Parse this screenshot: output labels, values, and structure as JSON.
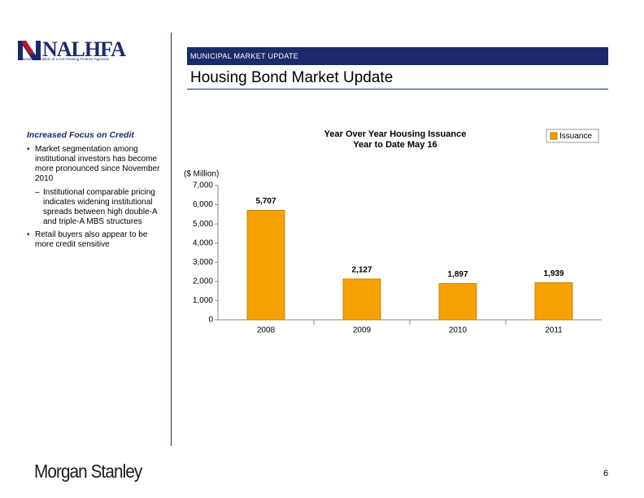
{
  "logo": {
    "name": "NALHFA",
    "subtitle": "National Association of Local Housing Finance Agencies"
  },
  "header": {
    "section": "MUNICIPAL MARKET UPDATE",
    "title": "Housing Bond Market Update"
  },
  "sidebar": {
    "heading": "Increased Focus on Credit",
    "bullets": [
      {
        "text": "Market segmentation among institutional investors has become more pronounced since November 2010",
        "subbullets": [
          "Institutional comparable pricing indicates widening institutional spreads between high double-A and triple-A MBS structures"
        ]
      },
      {
        "text": "Retail buyers also appear to be more credit sensitive"
      }
    ]
  },
  "chart_data": {
    "type": "bar",
    "title": "Year Over Year Housing Issuance",
    "subtitle": "Year to Date May 16",
    "y_label": "($ Million)",
    "categories": [
      "2008",
      "2009",
      "2010",
      "2011"
    ],
    "series": [
      {
        "name": "Issuance",
        "color": "#f5a200",
        "values": [
          5707,
          2127,
          1897,
          1939
        ],
        "value_labels": [
          "5,707",
          "2,127",
          "1,897",
          "1,939"
        ]
      }
    ],
    "ylim": [
      0,
      7000
    ],
    "yticks": [
      0,
      {
        "value": 1000,
        "label": "1,000"
      },
      {
        "value": 2000,
        "label": "2,000"
      },
      {
        "value": 3000,
        "label": "3,000"
      },
      {
        "value": 4000,
        "label": "4,000"
      },
      {
        "value": 5000,
        "label": "5,000"
      },
      {
        "value": 6000,
        "label": "6,000"
      },
      {
        "value": 7000,
        "label": "7,000"
      }
    ],
    "grid": false,
    "legend": "top-right"
  },
  "footer": {
    "brand": "Morgan Stanley",
    "page": "6"
  }
}
